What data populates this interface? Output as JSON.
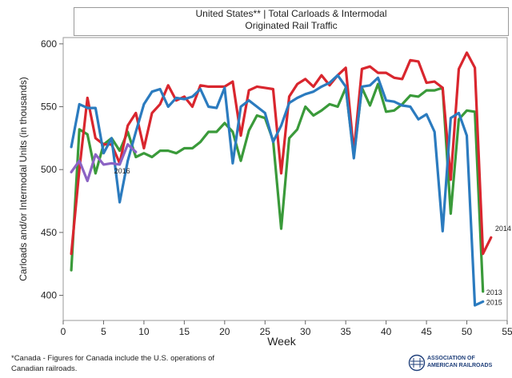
{
  "chart_data": {
    "type": "line",
    "title": "United States** | Total Carloads & Intermodal",
    "subtitle": "Originated Rail Traffic",
    "xlabel": "Week",
    "ylabel": "Carloads and/or Intermodal Units (in thousands)",
    "xlim": [
      0,
      55
    ],
    "ylim": [
      380,
      605
    ],
    "xticks": [
      0,
      5,
      10,
      15,
      20,
      25,
      30,
      35,
      40,
      45,
      50,
      55
    ],
    "yticks": [
      400,
      450,
      500,
      550,
      600
    ],
    "grid": false,
    "series": [
      {
        "name": "2013",
        "color": "#3a9a3a",
        "x": [
          1,
          2,
          3,
          4,
          5,
          6,
          7,
          8,
          9,
          10,
          11,
          12,
          13,
          14,
          15,
          16,
          17,
          18,
          19,
          20,
          21,
          22,
          23,
          24,
          25,
          26,
          27,
          28,
          29,
          30,
          31,
          32,
          33,
          34,
          35,
          36,
          37,
          38,
          39,
          40,
          41,
          42,
          43,
          44,
          45,
          46,
          47,
          48,
          49,
          50,
          51,
          52
        ],
        "y": [
          420,
          532,
          528,
          497,
          520,
          525,
          515,
          530,
          510,
          513,
          510,
          515,
          515,
          513,
          517,
          517,
          522,
          530,
          530,
          537,
          530,
          507,
          531,
          543,
          541,
          523,
          453,
          525,
          532,
          550,
          543,
          547,
          552,
          550,
          565,
          511,
          565,
          551,
          568,
          546,
          547,
          552,
          559,
          558,
          563,
          563,
          565,
          465,
          540,
          547,
          546,
          403
        ]
      },
      {
        "name": "2014",
        "color": "#d9262e",
        "x": [
          1,
          2,
          3,
          4,
          5,
          6,
          7,
          8,
          9,
          10,
          11,
          12,
          13,
          14,
          15,
          16,
          17,
          18,
          19,
          20,
          21,
          22,
          23,
          24,
          25,
          26,
          27,
          28,
          29,
          30,
          31,
          32,
          33,
          34,
          35,
          36,
          37,
          38,
          39,
          40,
          41,
          42,
          43,
          44,
          45,
          46,
          47,
          48,
          49,
          50,
          51,
          52,
          53
        ],
        "y": [
          433,
          500,
          557,
          525,
          520,
          520,
          505,
          535,
          545,
          517,
          545,
          552,
          567,
          555,
          558,
          550,
          567,
          566,
          566,
          566,
          570,
          527,
          563,
          566,
          565,
          564,
          497,
          558,
          568,
          572,
          566,
          575,
          567,
          575,
          581,
          514,
          580,
          582,
          577,
          577,
          573,
          572,
          587,
          586,
          569,
          570,
          565,
          492,
          580,
          593,
          581,
          433,
          446
        ]
      },
      {
        "name": "2015",
        "color": "#2b7bbf",
        "x": [
          1,
          2,
          3,
          4,
          5,
          6,
          7,
          8,
          9,
          10,
          11,
          12,
          13,
          14,
          15,
          16,
          17,
          18,
          19,
          20,
          21,
          22,
          23,
          24,
          25,
          26,
          27,
          28,
          29,
          30,
          31,
          32,
          33,
          34,
          35,
          36,
          37,
          38,
          39,
          40,
          41,
          42,
          43,
          44,
          45,
          46,
          47,
          48,
          49,
          50,
          51,
          52
        ],
        "y": [
          518,
          552,
          549,
          549,
          513,
          525,
          474,
          507,
          530,
          552,
          562,
          564,
          550,
          557,
          556,
          558,
          564,
          550,
          549,
          565,
          505,
          550,
          555,
          550,
          545,
          522,
          535,
          553,
          557,
          560,
          562,
          566,
          569,
          575,
          566,
          509,
          566,
          567,
          573,
          555,
          554,
          551,
          550,
          540,
          544,
          530,
          451,
          541,
          545,
          527,
          392,
          395
        ]
      },
      {
        "name": "2016",
        "color": "#8b63c4",
        "x": [
          1,
          2,
          3,
          4,
          5,
          6,
          7,
          8,
          9
        ],
        "y": [
          498,
          507,
          491,
          512,
          504,
          505,
          504,
          520,
          514
        ]
      }
    ]
  },
  "footnote": {
    "line1": "*Canada - Figures for Canada include the U.S. operations of",
    "line2": "Canadian railroads."
  },
  "logo": {
    "line1": "ASSOCIATION OF",
    "line2": "AMERICAN RAILROADS"
  }
}
